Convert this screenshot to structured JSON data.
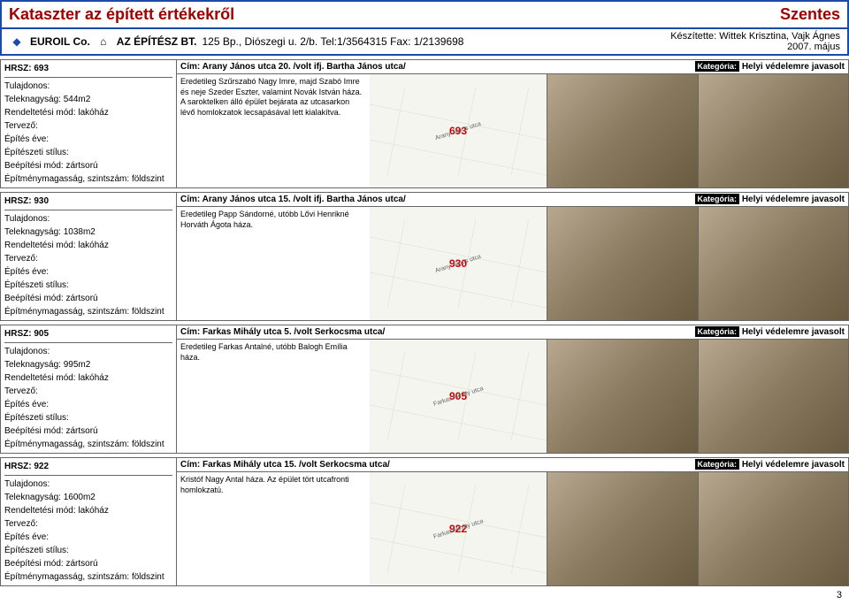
{
  "header": {
    "title_left": "Kataszter az épített értékekről",
    "title_right": "Szentes",
    "company": "EUROIL Co.",
    "architect": "AZ ÉPÍTÉSZ BT.",
    "address": "125 Bp., Diószegi u. 2/b. Tel:1/3564315 Fax: 1/2139698",
    "authors_label": "Készítette:",
    "authors": "Wittek Krisztina, Vajk Ágnes",
    "date": "2007. május"
  },
  "labels": {
    "tulajdonos": "Tulajdonos:",
    "teleknagysag": "Teleknagyság:",
    "rendeltetes": "Rendeltetési mód:",
    "tervezo": "Tervező:",
    "epites_eve": "Építés éve:",
    "epiteszeti_stilus": "Építészeti stílus:",
    "beepitesi_mod": "Beépítési mód:",
    "epitmenymagassag": "Építménymagasság, szintszám:",
    "hrsz": "HRSZ:",
    "cim": "Cím:",
    "kategoria": "Kategória:"
  },
  "entries": [
    {
      "hrsz": "693",
      "cim": "Arany János utca 20.  /volt ifj. Bartha János utca/",
      "kategoria": "Helyi védelemre javasolt",
      "teleknagysag": "544m2",
      "rendeltetes": "lakóház",
      "beepitesi": "zártsorú",
      "szint": "földszint",
      "desc": "Eredetileg Szűrszabó Nagy Imre, majd Szabó Imre és neje Szeder Eszter, valamint Novák István háza. A saroktelken álló épület bejárata az utcasarkon lévő homlokzatok lecsapásával lett kialakítva.",
      "map_num": "693",
      "map_street": "Arany János utca"
    },
    {
      "hrsz": "930",
      "cim": "Arany János utca 15.  /volt ifj. Bartha János utca/",
      "kategoria": "Helyi védelemre javasolt",
      "teleknagysag": "1038m2",
      "rendeltetes": "lakóház",
      "beepitesi": "zártsorú",
      "szint": "földszint",
      "desc": "Eredetileg Papp Sándorné, utóbb Lővi Henrikné Horváth Ágota háza.",
      "map_num": "930",
      "map_street": "Arany János utca"
    },
    {
      "hrsz": "905",
      "cim": "Farkas Mihály utca 5.  /volt Serkocsma utca/",
      "kategoria": "Helyi védelemre javasolt",
      "teleknagysag": "995m2",
      "rendeltetes": "lakóház",
      "beepitesi": "zártsorú",
      "szint": "földszint",
      "desc": "Eredetileg Farkas Antalné, utóbb Balogh Emília háza.",
      "map_num": "905",
      "map_street": "Farkas Mihály utca"
    },
    {
      "hrsz": "922",
      "cim": "Farkas Mihály utca 15.  /volt Serkocsma utca/",
      "kategoria": "Helyi védelemre javasolt",
      "teleknagysag": "1600m2",
      "rendeltetes": "lakóház",
      "beepitesi": "zártsorú",
      "szint": "földszint",
      "desc": "Kristóf Nagy Antal háza. Az épület tört utcafronti homlokzatú.",
      "map_num": "922",
      "map_street": "Farkas Mihály utca"
    }
  ],
  "page_number": "3"
}
